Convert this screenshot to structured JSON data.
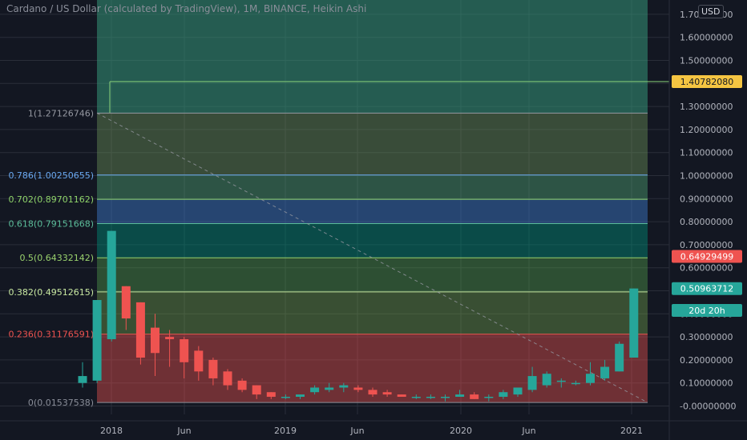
{
  "header": {
    "title": "Cardano / US Dollar (calculated by TradingView), 1M, BINANCE, Heikin Ashi",
    "currency_button": "USD"
  },
  "colors": {
    "background": "#131722",
    "grid": "#2a2e39",
    "up": "#26a69a",
    "down": "#ef5350",
    "axis_text": "#b2b5be"
  },
  "chart_data": {
    "type": "candlestick",
    "title": "Cardano / US Dollar (calculated by TradingView), 1M, BINANCE, Heikin Ashi",
    "ylim": [
      -0.03,
      1.72
    ],
    "y_ticks": [
      "-0.00000000",
      "0.10000000",
      "0.20000000",
      "0.30000000",
      "0.40000000",
      "0.50000000",
      "0.60000000",
      "0.70000000",
      "0.80000000",
      "0.90000000",
      "1.00000000",
      "1.10000000",
      "1.20000000",
      "1.30000000",
      "1.40000000",
      "1.50000000",
      "1.60000000",
      "1.70000000"
    ],
    "x_ticks": [
      "2018",
      "Jun",
      "2019",
      "Jun",
      "2020",
      "Jun",
      "2021"
    ],
    "fib_levels": [
      {
        "ratio": 0,
        "label": "0(0.01537538)",
        "price": 0.01537538,
        "color": "#8a8e99"
      },
      {
        "ratio": 0.236,
        "label": "0.236(0.31176591)",
        "price": 0.31176591,
        "color": "#ef5350"
      },
      {
        "ratio": 0.382,
        "label": "0.382(0.49512615)",
        "price": 0.49512615,
        "color": "#c7e7a0"
      },
      {
        "ratio": 0.5,
        "label": "0.5(0.64332142)",
        "price": 0.64332142,
        "color": "#9ad26d"
      },
      {
        "ratio": 0.618,
        "label": "0.618(0.79151668)",
        "price": 0.79151668,
        "color": "#5bbd9a"
      },
      {
        "ratio": 0.702,
        "label": "0.702(0.89701162)",
        "price": 0.89701162,
        "color": "#8fd36a"
      },
      {
        "ratio": 0.786,
        "label": "0.786(1.00250655)",
        "price": 1.00250655,
        "color": "#6aa9f2"
      },
      {
        "ratio": 1,
        "label": "1(1.27126746)",
        "price": 1.27126746,
        "color": "#9598a1"
      }
    ],
    "price_labels": [
      {
        "text": "1.40782080",
        "price": 1.4078208,
        "bg": "#f5c542",
        "fg": "#131722"
      },
      {
        "text": "0.64929499",
        "price": 0.64929499,
        "bg": "#ef5350",
        "fg": "#ffffff"
      },
      {
        "text": "0.50963712",
        "price": 0.50963712,
        "bg": "#26a69a",
        "fg": "#ffffff"
      },
      {
        "text": "20d 20h",
        "price": 0.415,
        "bg": "#26a69a",
        "fg": "#ffffff"
      }
    ],
    "candles": [
      {
        "o": 0.1,
        "h": 0.19,
        "l": 0.08,
        "c": 0.13
      },
      {
        "o": 0.11,
        "h": 0.46,
        "l": 0.1,
        "c": 0.46
      },
      {
        "o": 0.29,
        "h": 0.76,
        "l": 0.28,
        "c": 0.76
      },
      {
        "o": 0.52,
        "h": 0.52,
        "l": 0.33,
        "c": 0.38
      },
      {
        "o": 0.45,
        "h": 0.45,
        "l": 0.18,
        "c": 0.21
      },
      {
        "o": 0.34,
        "h": 0.4,
        "l": 0.13,
        "c": 0.23
      },
      {
        "o": 0.3,
        "h": 0.33,
        "l": 0.17,
        "c": 0.29
      },
      {
        "o": 0.29,
        "h": 0.3,
        "l": 0.12,
        "c": 0.19
      },
      {
        "o": 0.24,
        "h": 0.26,
        "l": 0.11,
        "c": 0.15
      },
      {
        "o": 0.2,
        "h": 0.21,
        "l": 0.09,
        "c": 0.12
      },
      {
        "o": 0.15,
        "h": 0.16,
        "l": 0.07,
        "c": 0.09
      },
      {
        "o": 0.11,
        "h": 0.12,
        "l": 0.06,
        "c": 0.07
      },
      {
        "o": 0.09,
        "h": 0.09,
        "l": 0.03,
        "c": 0.05
      },
      {
        "o": 0.06,
        "h": 0.06,
        "l": 0.03,
        "c": 0.04
      },
      {
        "o": 0.04,
        "h": 0.05,
        "l": 0.03,
        "c": 0.04
      },
      {
        "o": 0.04,
        "h": 0.05,
        "l": 0.03,
        "c": 0.05
      },
      {
        "o": 0.06,
        "h": 0.09,
        "l": 0.05,
        "c": 0.08
      },
      {
        "o": 0.07,
        "h": 0.1,
        "l": 0.06,
        "c": 0.08
      },
      {
        "o": 0.08,
        "h": 0.1,
        "l": 0.06,
        "c": 0.09
      },
      {
        "o": 0.08,
        "h": 0.09,
        "l": 0.06,
        "c": 0.07
      },
      {
        "o": 0.07,
        "h": 0.08,
        "l": 0.04,
        "c": 0.05
      },
      {
        "o": 0.06,
        "h": 0.07,
        "l": 0.04,
        "c": 0.05
      },
      {
        "o": 0.05,
        "h": 0.05,
        "l": 0.04,
        "c": 0.04
      },
      {
        "o": 0.04,
        "h": 0.05,
        "l": 0.03,
        "c": 0.04
      },
      {
        "o": 0.04,
        "h": 0.05,
        "l": 0.03,
        "c": 0.04
      },
      {
        "o": 0.04,
        "h": 0.05,
        "l": 0.02,
        "c": 0.04
      },
      {
        "o": 0.04,
        "h": 0.07,
        "l": 0.04,
        "c": 0.05
      },
      {
        "o": 0.05,
        "h": 0.06,
        "l": 0.03,
        "c": 0.03
      },
      {
        "o": 0.04,
        "h": 0.05,
        "l": 0.02,
        "c": 0.04
      },
      {
        "o": 0.04,
        "h": 0.07,
        "l": 0.03,
        "c": 0.06
      },
      {
        "o": 0.05,
        "h": 0.08,
        "l": 0.04,
        "c": 0.08
      },
      {
        "o": 0.07,
        "h": 0.17,
        "l": 0.06,
        "c": 0.13
      },
      {
        "o": 0.09,
        "h": 0.15,
        "l": 0.08,
        "c": 0.14
      },
      {
        "o": 0.11,
        "h": 0.12,
        "l": 0.08,
        "c": 0.11
      },
      {
        "o": 0.1,
        "h": 0.11,
        "l": 0.09,
        "c": 0.1
      },
      {
        "o": 0.1,
        "h": 0.19,
        "l": 0.09,
        "c": 0.14
      },
      {
        "o": 0.12,
        "h": 0.2,
        "l": 0.11,
        "c": 0.17
      },
      {
        "o": 0.15,
        "h": 0.28,
        "l": 0.15,
        "c": 0.27
      },
      {
        "o": 0.21,
        "h": 0.51,
        "l": 0.21,
        "c": 0.51
      }
    ]
  }
}
